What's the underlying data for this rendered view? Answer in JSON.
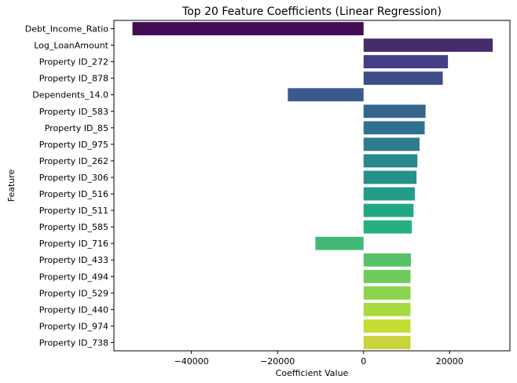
{
  "chart_data": {
    "type": "bar",
    "orientation": "horizontal",
    "title": "Top 20 Feature Coefficients (Linear Regression)",
    "xlabel": "Coefficient Value",
    "ylabel": "Feature",
    "xlim": [
      -58000,
      34000
    ],
    "xticks": [
      -40000,
      -20000,
      0,
      20000
    ],
    "xtick_labels": [
      "−40000",
      "−20000",
      "0",
      "20000"
    ],
    "grid": false,
    "legend": false,
    "palette": "viridis",
    "categories": [
      "Debt_Income_Ratio",
      "Log_LoanAmount",
      "Property ID_272",
      "Property ID_878",
      "Dependents_14.0",
      "Property ID_583",
      "Property ID_85",
      "Property ID_975",
      "Property ID_262",
      "Property ID_306",
      "Property ID_516",
      "Property ID_511",
      "Property ID_585",
      "Property ID_716",
      "Property ID_433",
      "Property ID_494",
      "Property ID_529",
      "Property ID_440",
      "Property ID_974",
      "Property ID_738"
    ],
    "values": [
      -53700,
      30000,
      19600,
      18400,
      -17600,
      14400,
      14200,
      13000,
      12500,
      12300,
      11900,
      11600,
      11200,
      -11200,
      11000,
      10900,
      10900,
      10900,
      10900,
      10900
    ],
    "colors": [
      "#450c56",
      "#472c6c",
      "#433e85",
      "#3e4d8a",
      "#3a5a8b",
      "#34668d",
      "#2f718e",
      "#2c7c8e",
      "#29878e",
      "#26918c",
      "#239c89",
      "#22a785",
      "#27b07f",
      "#41b975",
      "#57c267",
      "#6eca5d",
      "#8bd34d",
      "#a8da3d",
      "#c4dd30",
      "#c9d33a"
    ]
  }
}
